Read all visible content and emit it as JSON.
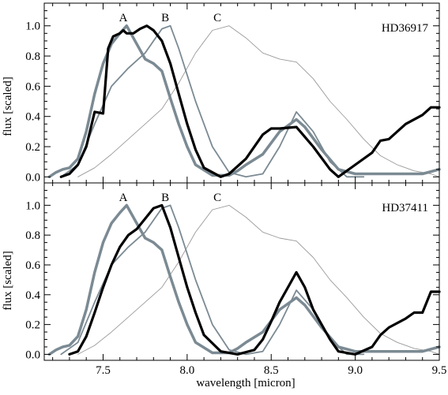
{
  "figure": {
    "xlabel": "wavelength [micron]",
    "ylabel": "flux [scaled]"
  },
  "chart_data": [
    {
      "type": "line",
      "star": "HD36917",
      "xlim": [
        7.15,
        9.5
      ],
      "ylim": [
        -0.04,
        1.15
      ],
      "x_ticks": [
        "7.5",
        "8.0",
        "8.5",
        "9.0",
        "9.5"
      ],
      "y_ticks": [
        "0.0",
        "0.2",
        "0.4",
        "0.6",
        "0.8",
        "1.0"
      ],
      "xlabel": "",
      "ylabel": "flux [scaled]",
      "peak_labels": [
        {
          "text": "A",
          "x": 7.62
        },
        {
          "text": "B",
          "x": 7.87
        },
        {
          "text": "C",
          "x": 8.18
        }
      ],
      "series": [
        {
          "color": "#9a9a9a",
          "width": 0.9,
          "x": [
            7.35,
            7.45,
            7.55,
            7.65,
            7.75,
            7.85,
            7.95,
            8.05,
            8.15,
            8.25,
            8.35,
            8.45,
            8.55,
            8.65,
            8.75,
            8.85,
            8.95,
            9.05,
            9.15,
            9.25,
            9.35,
            9.45,
            9.5
          ],
          "y": [
            0.0,
            0.06,
            0.15,
            0.25,
            0.35,
            0.45,
            0.62,
            0.82,
            0.97,
            1.0,
            0.92,
            0.82,
            0.78,
            0.76,
            0.65,
            0.5,
            0.38,
            0.25,
            0.14,
            0.08,
            0.04,
            0.02,
            0.0
          ]
        },
        {
          "color": "#7b8a93",
          "width": 1.8,
          "x": [
            7.25,
            7.35,
            7.45,
            7.55,
            7.65,
            7.75,
            7.85,
            7.9,
            7.95,
            8.05,
            8.15,
            8.25,
            8.35,
            8.45,
            8.55,
            8.65,
            8.75,
            8.85,
            8.95,
            9.05
          ],
          "y": [
            0.0,
            0.08,
            0.35,
            0.6,
            0.72,
            0.82,
            0.98,
            1.0,
            0.85,
            0.5,
            0.2,
            0.03,
            0.0,
            0.02,
            0.2,
            0.43,
            0.3,
            0.1,
            0.0,
            0.0
          ]
        },
        {
          "color": "#7b8a93",
          "width": 3.5,
          "x": [
            7.18,
            7.22,
            7.26,
            7.3,
            7.35,
            7.4,
            7.45,
            7.5,
            7.55,
            7.6,
            7.64,
            7.7,
            7.75,
            7.8,
            7.85,
            7.9,
            7.95,
            8.0,
            8.05,
            8.15,
            8.25,
            8.3,
            8.35,
            8.45,
            8.55,
            8.65,
            8.7,
            8.8,
            8.9,
            9.0,
            9.2,
            9.4,
            9.5
          ],
          "y": [
            0.0,
            0.03,
            0.05,
            0.06,
            0.12,
            0.3,
            0.55,
            0.75,
            0.88,
            0.95,
            1.0,
            0.88,
            0.78,
            0.75,
            0.7,
            0.52,
            0.35,
            0.2,
            0.08,
            0.01,
            0.01,
            0.04,
            0.08,
            0.15,
            0.3,
            0.38,
            0.33,
            0.18,
            0.05,
            0.02,
            0.02,
            0.02,
            0.05
          ]
        },
        {
          "color": "#000000",
          "width": 3.2,
          "x": [
            7.25,
            7.3,
            7.35,
            7.4,
            7.45,
            7.5,
            7.53,
            7.56,
            7.6,
            7.62,
            7.64,
            7.68,
            7.72,
            7.76,
            7.8,
            7.85,
            7.9,
            7.95,
            8.0,
            8.05,
            8.1,
            8.2,
            8.25,
            8.35,
            8.45,
            8.5,
            8.55,
            8.65,
            8.75,
            8.85,
            8.9,
            9.0,
            9.1,
            9.15,
            9.2,
            9.3,
            9.4,
            9.45,
            9.5
          ],
          "y": [
            0.0,
            0.02,
            0.08,
            0.2,
            0.43,
            0.42,
            0.85,
            0.93,
            0.95,
            0.97,
            0.95,
            0.95,
            0.98,
            1.0,
            0.97,
            0.9,
            0.75,
            0.55,
            0.35,
            0.18,
            0.06,
            0.0,
            0.02,
            0.12,
            0.28,
            0.32,
            0.32,
            0.33,
            0.2,
            0.05,
            0.0,
            0.08,
            0.16,
            0.24,
            0.25,
            0.35,
            0.41,
            0.46,
            0.46
          ]
        }
      ]
    },
    {
      "type": "line",
      "star": "HD37411",
      "xlim": [
        7.15,
        9.5
      ],
      "ylim": [
        -0.04,
        1.15
      ],
      "x_ticks": [
        "7.5",
        "8.0",
        "8.5",
        "9.0",
        "9.5"
      ],
      "y_ticks": [
        "0.0",
        "0.2",
        "0.4",
        "0.6",
        "0.8",
        "1.0"
      ],
      "xlabel": "wavelength [micron]",
      "ylabel": "flux [scaled]",
      "peak_labels": [
        {
          "text": "A",
          "x": 7.62
        },
        {
          "text": "B",
          "x": 7.87
        },
        {
          "text": "C",
          "x": 8.18
        }
      ],
      "series": [
        {
          "color": "#9a9a9a",
          "width": 0.9,
          "x": [
            7.35,
            7.45,
            7.55,
            7.65,
            7.75,
            7.85,
            7.95,
            8.05,
            8.15,
            8.25,
            8.35,
            8.45,
            8.55,
            8.65,
            8.75,
            8.85,
            8.95,
            9.05,
            9.15,
            9.25,
            9.35,
            9.45,
            9.5
          ],
          "y": [
            0.0,
            0.06,
            0.15,
            0.25,
            0.35,
            0.45,
            0.62,
            0.82,
            0.97,
            1.0,
            0.92,
            0.82,
            0.78,
            0.76,
            0.65,
            0.5,
            0.38,
            0.25,
            0.14,
            0.08,
            0.04,
            0.02,
            0.0
          ]
        },
        {
          "color": "#7b8a93",
          "width": 1.8,
          "x": [
            7.25,
            7.35,
            7.45,
            7.55,
            7.65,
            7.75,
            7.85,
            7.9,
            7.95,
            8.05,
            8.15,
            8.25,
            8.35,
            8.45,
            8.55,
            8.65,
            8.75,
            8.85,
            8.95,
            9.05
          ],
          "y": [
            0.0,
            0.08,
            0.35,
            0.6,
            0.72,
            0.82,
            0.98,
            1.0,
            0.85,
            0.5,
            0.2,
            0.03,
            0.0,
            0.02,
            0.2,
            0.43,
            0.3,
            0.1,
            0.0,
            0.0
          ]
        },
        {
          "color": "#7b8a93",
          "width": 3.5,
          "x": [
            7.18,
            7.22,
            7.26,
            7.3,
            7.35,
            7.4,
            7.45,
            7.5,
            7.55,
            7.6,
            7.64,
            7.7,
            7.75,
            7.8,
            7.85,
            7.9,
            7.95,
            8.0,
            8.05,
            8.15,
            8.25,
            8.3,
            8.35,
            8.45,
            8.55,
            8.65,
            8.7,
            8.8,
            8.9,
            9.0,
            9.2,
            9.4,
            9.5
          ],
          "y": [
            0.0,
            0.03,
            0.05,
            0.06,
            0.12,
            0.3,
            0.55,
            0.75,
            0.88,
            0.95,
            1.0,
            0.88,
            0.78,
            0.75,
            0.7,
            0.52,
            0.35,
            0.2,
            0.08,
            0.01,
            0.01,
            0.04,
            0.08,
            0.15,
            0.3,
            0.38,
            0.33,
            0.18,
            0.05,
            0.02,
            0.02,
            0.02,
            0.05
          ]
        },
        {
          "color": "#000000",
          "width": 3.2,
          "x": [
            7.3,
            7.35,
            7.4,
            7.45,
            7.5,
            7.55,
            7.6,
            7.65,
            7.7,
            7.75,
            7.8,
            7.85,
            7.9,
            7.95,
            8.0,
            8.05,
            8.1,
            8.2,
            8.3,
            8.4,
            8.45,
            8.5,
            8.55,
            8.6,
            8.65,
            8.7,
            8.75,
            8.85,
            8.9,
            9.0,
            9.1,
            9.15,
            9.2,
            9.3,
            9.35,
            9.4,
            9.45,
            9.5
          ],
          "y": [
            0.0,
            0.02,
            0.12,
            0.28,
            0.45,
            0.6,
            0.72,
            0.8,
            0.84,
            0.91,
            0.98,
            1.0,
            0.85,
            0.65,
            0.45,
            0.28,
            0.13,
            0.02,
            0.0,
            0.03,
            0.1,
            0.22,
            0.35,
            0.45,
            0.55,
            0.45,
            0.3,
            0.1,
            0.02,
            0.0,
            0.05,
            0.13,
            0.18,
            0.24,
            0.28,
            0.28,
            0.42,
            0.42
          ]
        }
      ]
    }
  ]
}
